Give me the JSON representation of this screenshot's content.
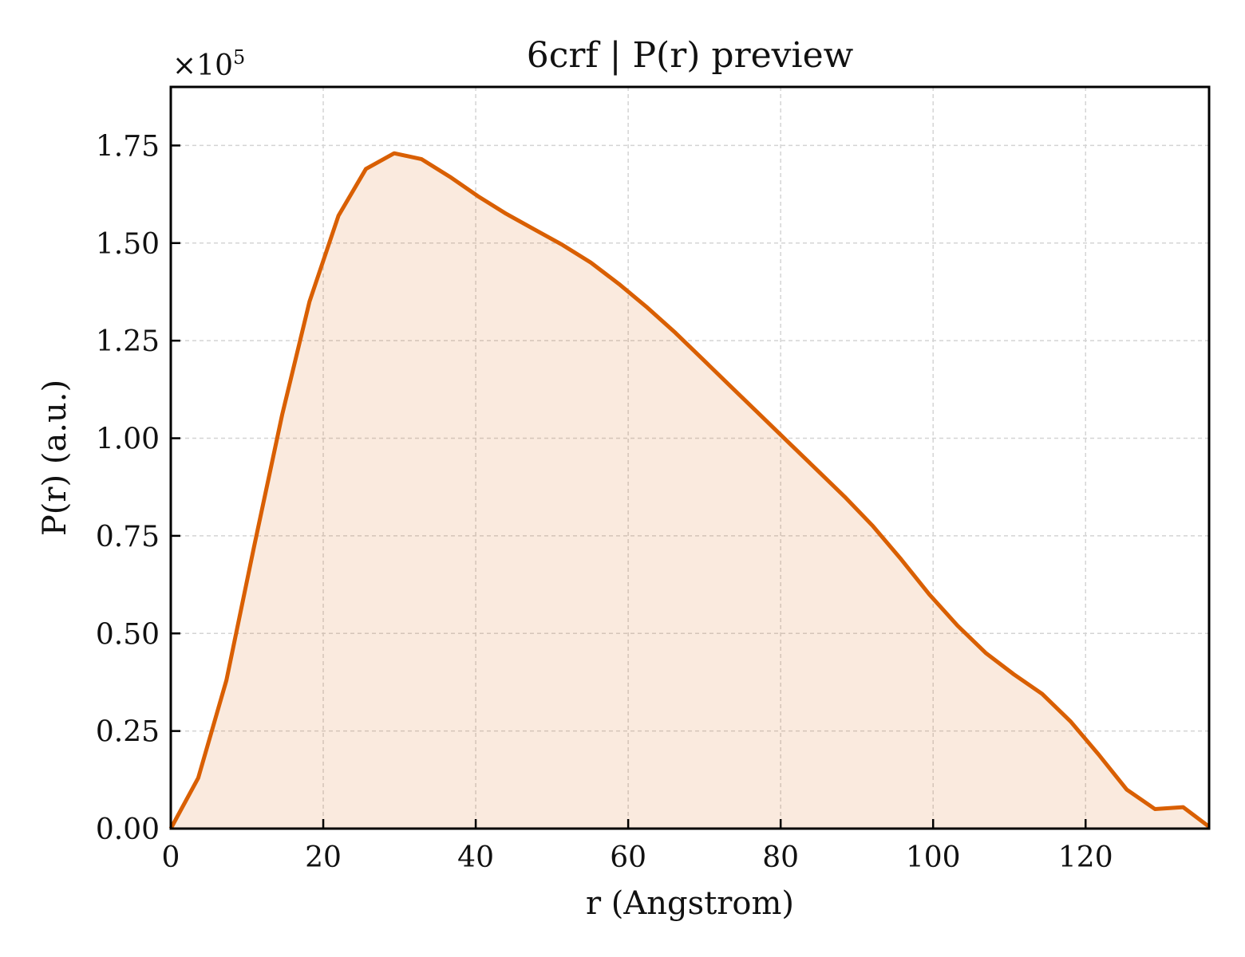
{
  "chart_data": {
    "type": "area",
    "title": "6crf | P(r) preview",
    "xlabel": "r (Angstrom)",
    "ylabel": "P(r) (a.u.)",
    "y_multiplier": {
      "base": "×10",
      "exponent": "5"
    },
    "xlim": [
      0,
      136.2
    ],
    "ylim": [
      0,
      1.9
    ],
    "x_ticks": [
      0,
      20,
      40,
      60,
      80,
      100,
      120
    ],
    "x_tick_labels": [
      "0",
      "20",
      "40",
      "60",
      "80",
      "100",
      "120"
    ],
    "y_ticks": [
      0,
      0.25,
      0.5,
      0.75,
      1.0,
      1.25,
      1.5,
      1.75
    ],
    "y_tick_labels": [
      "0.00",
      "0.25",
      "0.50",
      "0.75",
      "1.00",
      "1.25",
      "1.50",
      "1.75"
    ],
    "grid": true,
    "series": [
      {
        "x": [
          0,
          3.6,
          7.3,
          10.9,
          14.6,
          18.2,
          22.0,
          25.6,
          29.3,
          32.9,
          36.6,
          40.3,
          44.0,
          47.7,
          51.4,
          55.1,
          58.8,
          62.5,
          66.2,
          69.9,
          73.6,
          77.3,
          81.0,
          84.7,
          88.4,
          92.1,
          95.8,
          99.5,
          103.2,
          106.9,
          110.6,
          114.3,
          118.0,
          121.7,
          125.4,
          129.1,
          132.8,
          136.2
        ],
        "values": [
          0.0,
          0.13,
          0.38,
          0.72,
          1.06,
          1.35,
          1.57,
          1.69,
          1.73,
          1.715,
          1.67,
          1.62,
          1.575,
          1.535,
          1.495,
          1.45,
          1.395,
          1.335,
          1.27,
          1.2,
          1.13,
          1.06,
          0.99,
          0.92,
          0.85,
          0.775,
          0.69,
          0.6,
          0.52,
          0.45,
          0.395,
          0.345,
          0.275,
          0.19,
          0.1,
          0.05,
          0.055,
          0.005
        ]
      }
    ],
    "colors": {
      "line": "#d95f02",
      "fill": "#d95f02"
    }
  }
}
